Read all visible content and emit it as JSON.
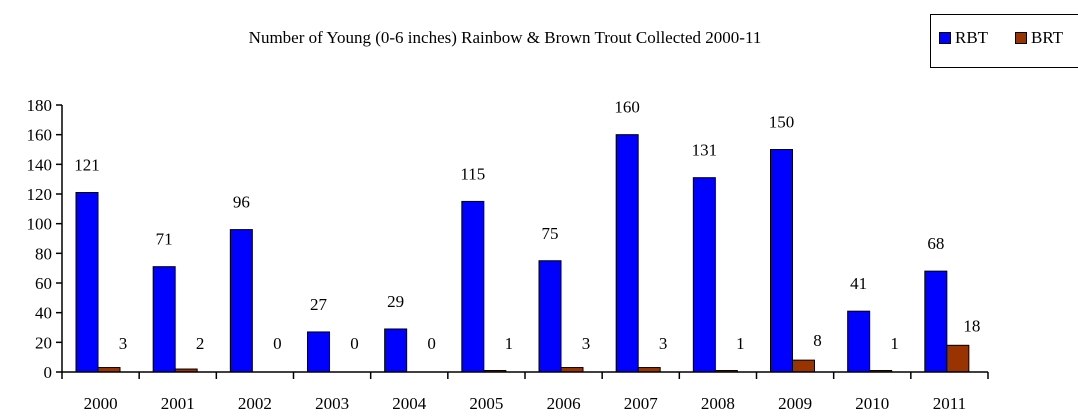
{
  "chart_data": {
    "type": "bar",
    "title": "Number of Young (0-6 inches) Rainbow & Brown Trout Collected 2000-11",
    "categories": [
      "2000",
      "2001",
      "2002",
      "2003",
      "2004",
      "2005",
      "2006",
      "2007",
      "2008",
      "2009",
      "2010",
      "2011"
    ],
    "series": [
      {
        "name": "RBT",
        "color": "#0000ff",
        "values": [
          121,
          71,
          96,
          27,
          29,
          115,
          75,
          160,
          131,
          150,
          41,
          68
        ]
      },
      {
        "name": "BRT",
        "color": "#993300",
        "values": [
          3,
          2,
          0,
          0,
          0,
          1,
          3,
          3,
          1,
          8,
          1,
          18
        ]
      }
    ],
    "ylim": [
      0,
      180
    ],
    "yticks": [
      0,
      20,
      40,
      60,
      80,
      100,
      120,
      140,
      160,
      180
    ],
    "xlabel": "",
    "ylabel": "",
    "grid": false,
    "legend": "top-right"
  }
}
